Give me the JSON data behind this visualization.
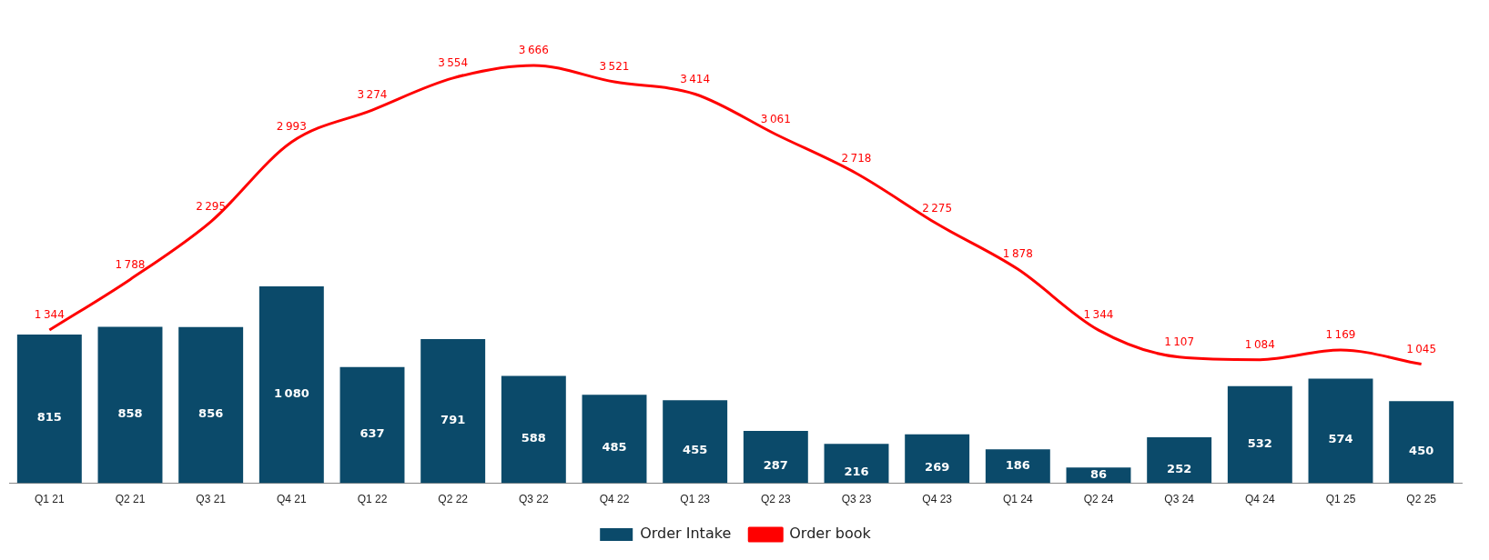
{
  "chart_data": {
    "type": "bar",
    "categories": [
      "Q1 21",
      "Q2 21",
      "Q3 21",
      "Q4 21",
      "Q1 22",
      "Q2 22",
      "Q3 22",
      "Q4 22",
      "Q1 23",
      "Q2 23",
      "Q3 23",
      "Q4 23",
      "Q1 24",
      "Q2 24",
      "Q3 24",
      "Q4 24",
      "Q1 25",
      "Q2 25"
    ],
    "series": [
      {
        "name": "Order Intake",
        "color": "#0b4a6a",
        "values": [
          815,
          858,
          856,
          1080,
          637,
          791,
          588,
          485,
          455,
          287,
          216,
          269,
          186,
          86,
          252,
          532,
          574,
          450
        ]
      },
      {
        "name": "Order book",
        "type": "line",
        "axis": "y2",
        "color": "#ff0000",
        "marker": "none",
        "values": [
          1344,
          1788,
          2295,
          2993,
          3274,
          3554,
          3666,
          3521,
          3414,
          3061,
          2718,
          2275,
          1878,
          1344,
          1107,
          1084,
          1169,
          1045
        ]
      }
    ],
    "tick_labels": "x",
    "data_labels": true,
    "legend": "bottom",
    "grid": false
  }
}
